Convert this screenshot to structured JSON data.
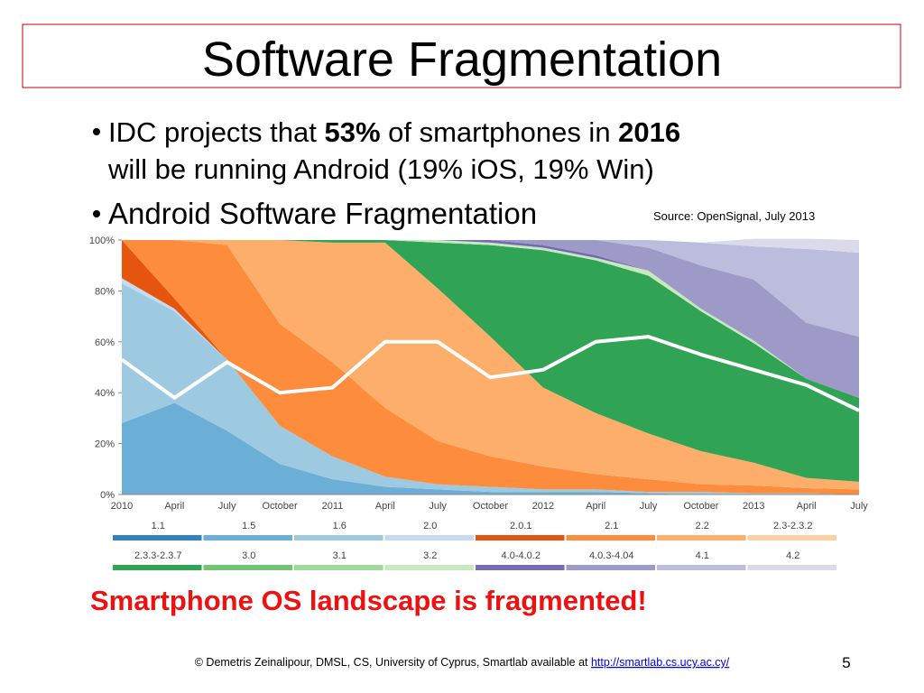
{
  "title": "Software Fragmentation",
  "bullets": [
    {
      "parts": [
        "IDC projects that ",
        "53%",
        " of smartphones in ",
        "2016",
        "will be running Android (19% iOS, 19% Win)"
      ],
      "bold": [
        false,
        true,
        false,
        true,
        false
      ]
    },
    {
      "parts": [
        "Android Software Fragmentation"
      ],
      "bold": [
        false
      ]
    }
  ],
  "source": "Source: OpenSignal, July 2013",
  "chart_data": {
    "type": "stacked_area",
    "categories": [
      "2010",
      "April",
      "July",
      "October",
      "2011",
      "April",
      "July",
      "October",
      "2012",
      "April",
      "July",
      "October",
      "2013",
      "April",
      "July"
    ],
    "ylim": [
      0,
      100
    ],
    "yticks": [
      {
        "value": 0,
        "label": "0%"
      },
      {
        "value": 20,
        "label": "20%"
      },
      {
        "value": 40,
        "label": "40%"
      },
      {
        "value": 60,
        "label": "60%"
      },
      {
        "value": 80,
        "label": "80%"
      },
      {
        "value": 100,
        "label": "100%"
      }
    ],
    "series": [
      {
        "name": "1.1",
        "color": "#3182bd",
        "values": [
          0,
          0,
          0,
          0,
          0,
          0,
          0,
          0,
          0,
          0,
          0,
          0,
          0,
          0,
          0
        ]
      },
      {
        "name": "1.5",
        "color": "#6baed6",
        "values": [
          28,
          36,
          25,
          12,
          6,
          3,
          2,
          1,
          1,
          1,
          0.5,
          0,
          0,
          0,
          0
        ]
      },
      {
        "name": "1.6",
        "color": "#9ecae1",
        "values": [
          55,
          36,
          28,
          15,
          9,
          4,
          2,
          2,
          1,
          1,
          0.5,
          1,
          0.5,
          0.5,
          0
        ]
      },
      {
        "name": "2.0",
        "color": "#c6dbef",
        "values": [
          2,
          1,
          0,
          0,
          0,
          0,
          0,
          0,
          0,
          0,
          0,
          0,
          0,
          0,
          0
        ]
      },
      {
        "name": "2.0.1",
        "color": "#e6550d",
        "values": [
          15,
          4,
          0,
          0,
          0,
          0,
          0,
          0,
          0,
          0,
          0,
          0,
          0,
          0,
          0
        ]
      },
      {
        "name": "2.1",
        "color": "#fd8d3c",
        "values": [
          0,
          23,
          45,
          40,
          37,
          27,
          17,
          12,
          9,
          6,
          5,
          3,
          3,
          2,
          2
        ]
      },
      {
        "name": "2.2",
        "color": "#fdae6b",
        "values": [
          0,
          0,
          2,
          33,
          47,
          65,
          60,
          47,
          31,
          24,
          18,
          13,
          9,
          4,
          3
        ]
      },
      {
        "name": "2.3-2.3.2",
        "color": "#fdd0a2",
        "values": [
          0,
          0,
          0,
          0,
          0,
          0,
          0,
          0,
          0,
          0,
          0,
          0,
          0,
          0,
          0
        ]
      },
      {
        "name": "2.3.3-2.3.7",
        "color": "#31a354",
        "values": [
          0,
          0,
          0,
          0,
          1,
          1,
          18,
          36,
          54,
          60,
          62,
          55,
          47,
          39,
          33
        ]
      },
      {
        "name": "3.0",
        "color": "#74c476",
        "values": [
          0,
          0,
          0,
          0,
          0,
          0,
          0,
          0,
          0,
          0,
          0,
          0,
          0,
          0,
          0
        ]
      },
      {
        "name": "3.1",
        "color": "#a1d99b",
        "values": [
          0,
          0,
          0,
          0,
          0,
          0,
          0,
          0,
          0,
          0,
          0,
          0,
          0,
          0,
          0
        ]
      },
      {
        "name": "3.2",
        "color": "#c7e9c0",
        "values": [
          0,
          0,
          0,
          0,
          0,
          0,
          1,
          1,
          1,
          1,
          2,
          1,
          1,
          0,
          0
        ]
      },
      {
        "name": "4.0-4.0.2",
        "color": "#756bb1",
        "values": [
          0,
          0,
          0,
          0,
          0,
          0,
          0,
          1,
          1,
          1,
          0,
          0,
          0,
          0,
          0
        ]
      },
      {
        "name": "4.0.3-4.04",
        "color": "#9e9ac8",
        "values": [
          0,
          0,
          0,
          0,
          0,
          0,
          0,
          0,
          2,
          6,
          9,
          17,
          24,
          22,
          24
        ]
      },
      {
        "name": "4.1",
        "color": "#bcbddc",
        "values": [
          0,
          0,
          0,
          0,
          0,
          0,
          0,
          0,
          0,
          0,
          3,
          9,
          13,
          29,
          33
        ]
      },
      {
        "name": "4.2",
        "color": "#dadaeb",
        "values": [
          0,
          0,
          0,
          0,
          0,
          0,
          0,
          0,
          0,
          0,
          0,
          0,
          3,
          4,
          5
        ]
      }
    ],
    "line_values": [
      53,
      38,
      52,
      40,
      42,
      60,
      60,
      46,
      49,
      60,
      62,
      55,
      49,
      43,
      33
    ],
    "line_color": "#ffffff"
  },
  "conclusion": "Smartphone OS landscape is fragmented!",
  "footer": {
    "text": "© Demetris Zeinalipour, DMSL, CS, University of Cyprus, Smartlab available at ",
    "link": "http://smartlab.cs.ucy.ac.cy/"
  },
  "page_number": 5
}
